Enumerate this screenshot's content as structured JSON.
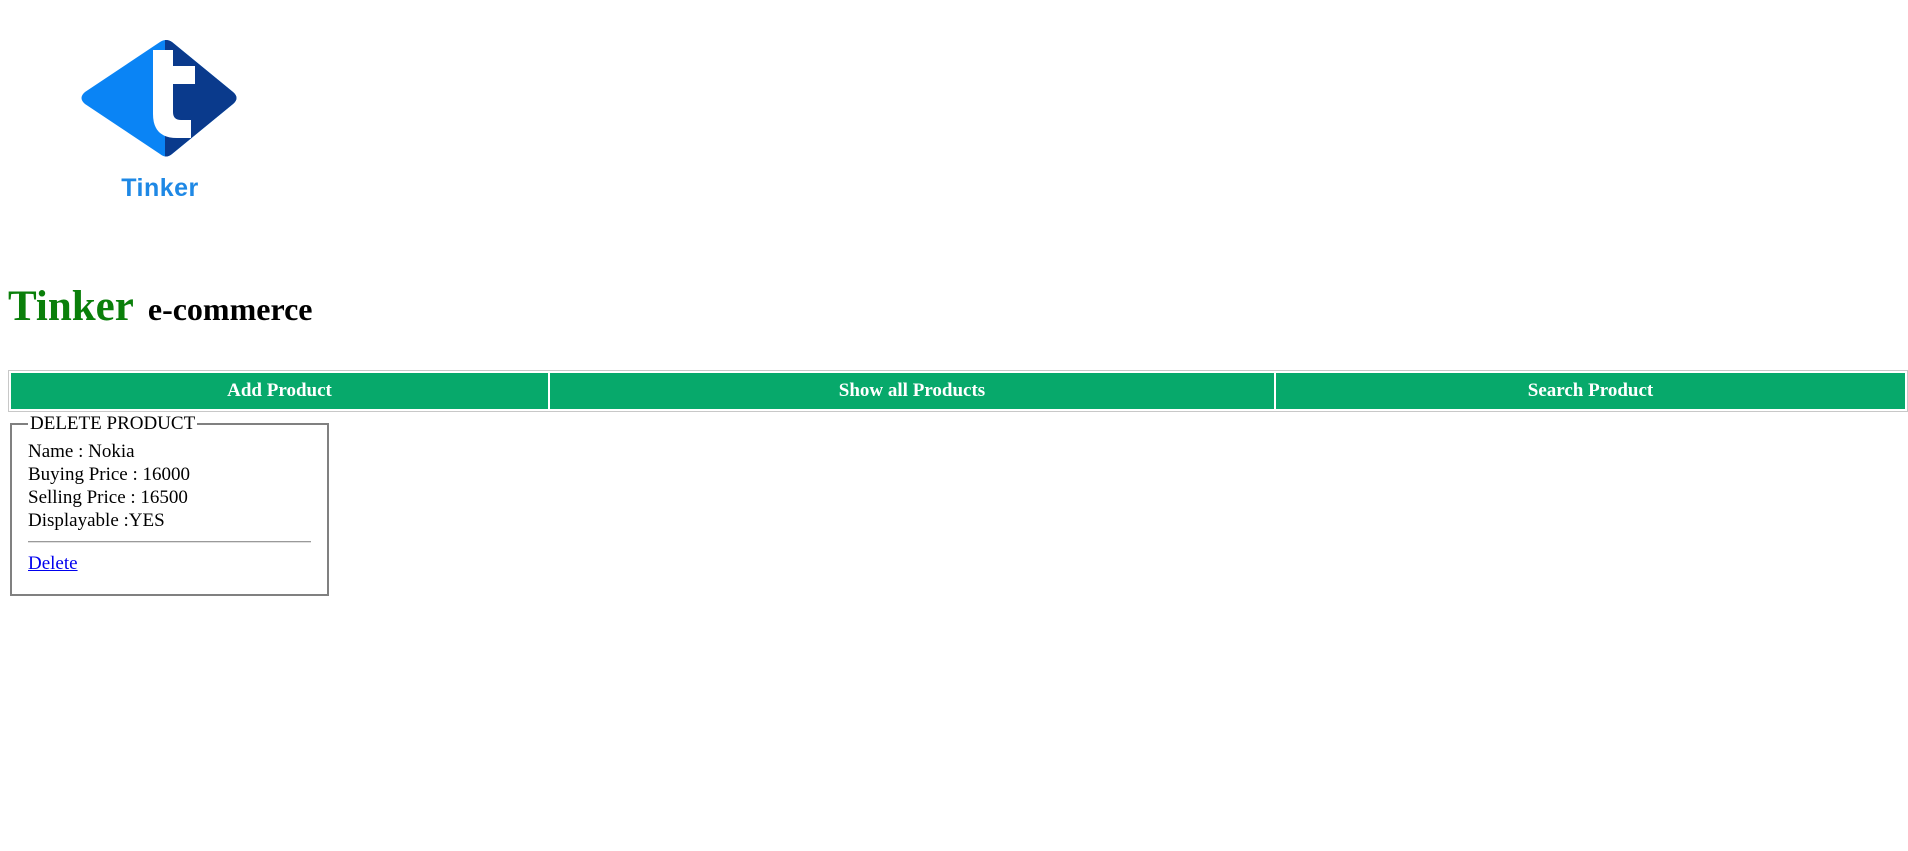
{
  "logo": {
    "text": "Tinker",
    "colors": {
      "dark_blue": "#0a3a8c",
      "light_blue": "#0a84f5"
    }
  },
  "header": {
    "brand": "Tinker",
    "subtitle": "e-commerce",
    "brand_color": "#0a7f0a"
  },
  "nav": {
    "color": "#07a96b",
    "items": [
      {
        "label": "Add Product"
      },
      {
        "label": "Show all Products"
      },
      {
        "label": "Search Product"
      }
    ]
  },
  "card": {
    "legend": "DELETE PRODUCT",
    "lines": [
      "Name : Nokia",
      "Buying Price : 16000",
      "Selling Price : 16500",
      "Displayable :YES"
    ],
    "delete_label": "Delete"
  }
}
